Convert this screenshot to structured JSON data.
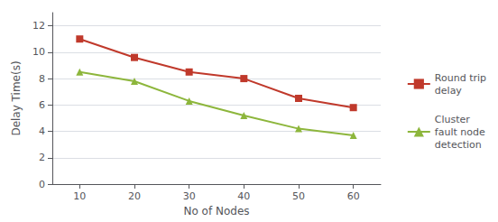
{
  "chart_data": {
    "type": "line",
    "xlabel": "No of Nodes",
    "ylabel": "Delay Time(s)",
    "x": [
      10,
      20,
      30,
      40,
      50,
      60
    ],
    "series": [
      {
        "name": "Round trip\ndelay",
        "color": "#c0392b",
        "marker": "square",
        "values": [
          11.0,
          9.6,
          8.5,
          8.0,
          6.5,
          5.8
        ]
      },
      {
        "name": "Cluster\nfault node\ndetection",
        "color": "#8db63c",
        "marker": "triangle",
        "values": [
          8.5,
          7.8,
          6.3,
          5.2,
          4.2,
          3.7
        ]
      }
    ],
    "xlim": [
      5,
      65
    ],
    "xticks": [
      10,
      20,
      30,
      40,
      50,
      60
    ],
    "ylim": [
      0,
      13
    ],
    "yticks": [
      0,
      2,
      4,
      6,
      8,
      10,
      12
    ],
    "grid": true,
    "legend": "right"
  }
}
